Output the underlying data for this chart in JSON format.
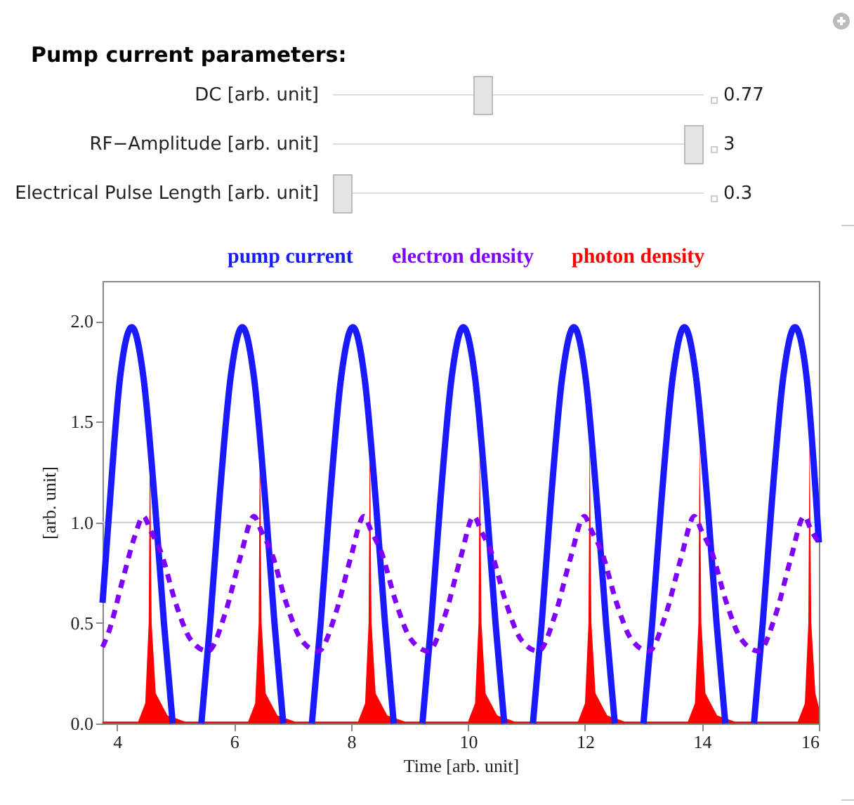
{
  "chart_data": [
    {
      "type": "other",
      "title": "Pump current parameters:",
      "annotations": [
        "DC [arb. unit]",
        "0.77",
        "RF−Amplitude [arb. unit]",
        "3",
        "Electrical Pulse Length [arb. unit]",
        "0.3"
      ]
    },
    {
      "type": "line",
      "xlabel": "Time [arb. unit]",
      "ylabel": "[arb. unit]",
      "legend": "top",
      "xlim": [
        3.75,
        16
      ],
      "xticks": [
        4,
        6,
        8,
        10,
        12,
        14,
        16
      ],
      "ylim": [
        0,
        2.2
      ],
      "yticks": [
        {
          "value": 0,
          "label": "0.0"
        },
        {
          "value": 0.5,
          "label": "0.5"
        },
        {
          "value": 1,
          "label": "1.0"
        },
        {
          "value": 1.5,
          "label": "1.5"
        },
        {
          "value": 2,
          "label": "2.0"
        }
      ],
      "ref_lines": [
        {
          "axis": "y",
          "value": 1,
          "color": "#cccccc"
        }
      ],
      "series": [
        {
          "name": "pump current",
          "color": "#1a1aff",
          "x": [
            3.75,
            3.85,
            4.05,
            4.25,
            4.45,
            4.65,
            4.8,
            4.95,
            5.2,
            5.44,
            5.59,
            5.74,
            5.94,
            6.14,
            6.34,
            6.54,
            6.69,
            6.84,
            7.08,
            7.33,
            7.48,
            7.63,
            7.83,
            8.03,
            8.23,
            8.43,
            8.58,
            8.73,
            8.97,
            9.22,
            9.37,
            9.52,
            9.72,
            9.92,
            10.12,
            10.32,
            10.47,
            10.62,
            10.86,
            11.11,
            11.26,
            11.41,
            11.61,
            11.81,
            12.01,
            12.21,
            12.36,
            12.51,
            12.75,
            13.0,
            13.15,
            13.3,
            13.5,
            13.7,
            13.9,
            14.1,
            14.25,
            14.4,
            14.64,
            14.89,
            15.04,
            15.19,
            15.39,
            15.59,
            15.79,
            16
          ],
          "values": [
            0.6,
            1.0,
            1.72,
            1.97,
            1.72,
            1.08,
            0.5,
            0,
            null,
            0,
            0.5,
            1.08,
            1.72,
            1.97,
            1.72,
            1.08,
            0.5,
            0,
            null,
            0,
            0.5,
            1.08,
            1.72,
            1.97,
            1.72,
            1.08,
            0.5,
            0,
            null,
            0,
            0.5,
            1.08,
            1.72,
            1.97,
            1.72,
            1.08,
            0.5,
            0,
            null,
            0,
            0.5,
            1.08,
            1.72,
            1.97,
            1.72,
            1.08,
            0.5,
            0,
            null,
            0,
            0.5,
            1.08,
            1.72,
            1.97,
            1.72,
            1.08,
            0.5,
            0,
            null,
            0,
            0.5,
            1.08,
            1.72,
            1.97,
            1.72,
            0.9
          ]
        },
        {
          "name": "electron density",
          "color": "#8000ff",
          "line_style": "dashed",
          "x": [
            3.75,
            3.85,
            4.1,
            4.3,
            4.45,
            4.57,
            4.75,
            5.0,
            5.25,
            5.55,
            5.85,
            6.1,
            6.34,
            6.46,
            6.64,
            6.89,
            7.14,
            7.44,
            7.74,
            7.99,
            8.22,
            8.34,
            8.52,
            8.77,
            9.02,
            9.32,
            9.62,
            9.87,
            10.1,
            10.22,
            10.4,
            10.65,
            10.9,
            11.2,
            11.5,
            11.75,
            11.99,
            12.11,
            12.29,
            12.54,
            12.79,
            13.09,
            13.39,
            13.64,
            13.87,
            13.99,
            14.17,
            14.42,
            14.67,
            14.97,
            15.27,
            15.52,
            15.75,
            15.87,
            16
          ],
          "values": [
            0.38,
            0.45,
            0.72,
            0.93,
            1.03,
            0.96,
            0.85,
            0.6,
            0.42,
            0.36,
            0.55,
            0.82,
            1.03,
            0.96,
            0.85,
            0.6,
            0.42,
            0.36,
            0.55,
            0.82,
            1.03,
            0.96,
            0.85,
            0.6,
            0.42,
            0.36,
            0.55,
            0.82,
            1.03,
            0.96,
            0.85,
            0.6,
            0.42,
            0.36,
            0.55,
            0.82,
            1.03,
            0.96,
            0.85,
            0.6,
            0.42,
            0.36,
            0.55,
            0.82,
            1.03,
            0.96,
            0.85,
            0.6,
            0.42,
            0.36,
            0.55,
            0.82,
            1.03,
            0.96,
            0.9
          ]
        },
        {
          "name": "photon density",
          "type": "area",
          "color": "#ff0000",
          "x": [
            3.75,
            4.36,
            4.48,
            4.54,
            4.56,
            4.59,
            4.66,
            4.86,
            5.16,
            6.24,
            6.36,
            6.42,
            6.44,
            6.47,
            6.54,
            6.74,
            7.04,
            8.12,
            8.24,
            8.3,
            8.32,
            8.35,
            8.42,
            8.62,
            8.92,
            10.0,
            10.12,
            10.18,
            10.2,
            10.23,
            10.3,
            10.5,
            10.8,
            11.88,
            12.0,
            12.06,
            12.08,
            12.11,
            12.18,
            12.38,
            12.68,
            13.76,
            13.88,
            13.94,
            13.96,
            13.99,
            14.06,
            14.26,
            14.56,
            15.64,
            15.76,
            15.82,
            15.84,
            15.87,
            15.94,
            16
          ],
          "values": [
            0.01,
            0.01,
            0.1,
            0.5,
            1.45,
            0.5,
            0.15,
            0.04,
            0.01,
            0.01,
            0.1,
            0.5,
            1.45,
            0.5,
            0.15,
            0.04,
            0.01,
            0.01,
            0.1,
            0.5,
            1.45,
            0.5,
            0.15,
            0.04,
            0.01,
            0.01,
            0.1,
            0.5,
            1.45,
            0.5,
            0.15,
            0.04,
            0.01,
            0.01,
            0.1,
            0.5,
            1.45,
            0.5,
            0.15,
            0.04,
            0.01,
            0.01,
            0.1,
            0.5,
            1.45,
            0.5,
            0.15,
            0.04,
            0.01,
            0.01,
            0.1,
            0.5,
            1.45,
            0.5,
            0.15,
            0.08
          ]
        }
      ]
    }
  ]
}
